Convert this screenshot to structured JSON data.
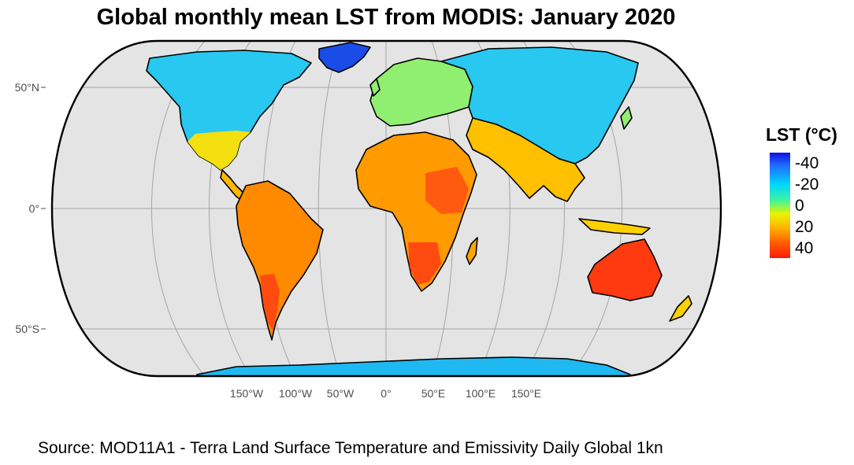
{
  "title": "Global monthly mean LST from MODIS: January 2020",
  "lat_labels": [
    "50°N",
    "0°",
    "50°S"
  ],
  "lon_labels": [
    "150°W",
    "100°W",
    "50°W",
    "0°",
    "50°E",
    "100°E",
    "150°E"
  ],
  "legend": {
    "title": "LST (°C)",
    "ticks": [
      "-40",
      "-20",
      "0",
      "20",
      "40"
    ],
    "colors": [
      "#1010e0",
      "#00d6ff",
      "#3cf4a0",
      "#e8f400",
      "#ff5a00",
      "#ff1a0a"
    ]
  },
  "colors": {
    "ocean": "#e4e4e4",
    "graticule": "#a6a6a6",
    "border": "#000000"
  },
  "source": "Source: MOD11A1 - Terra Land Surface Temperature and Emissivity Daily Global 1kn"
}
